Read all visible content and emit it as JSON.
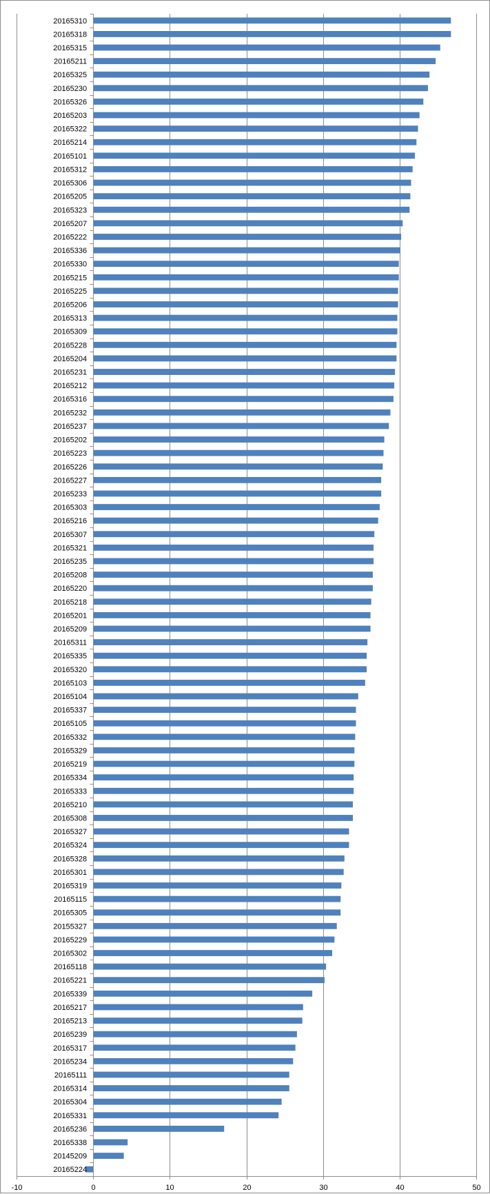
{
  "chart_data": {
    "type": "bar",
    "orientation": "horizontal",
    "title": "",
    "xlabel": "",
    "ylabel": "",
    "xlim": [
      -10,
      50
    ],
    "x_ticks": [
      -10,
      0,
      10,
      20,
      30,
      40,
      50
    ],
    "x_tick_labels": [
      "-10",
      "0",
      "10",
      "20",
      "30",
      "40",
      "50"
    ],
    "grid": "vertical major gridlines",
    "legend": "none",
    "bar_color": "#4F81BD",
    "categories": [
      "20165310",
      "20165318",
      "20165315",
      "20165211",
      "20165325",
      "20165230",
      "20165326",
      "20165203",
      "20165322",
      "20165214",
      "20165101",
      "20165312",
      "20165306",
      "20165205",
      "20165323",
      "20165207",
      "20165222",
      "20165336",
      "20165330",
      "20165215",
      "20165225",
      "20165206",
      "20165313",
      "20165309",
      "20165228",
      "20165204",
      "20165231",
      "20165212",
      "20165316",
      "20165232",
      "20165237",
      "20165202",
      "20165223",
      "20165226",
      "20165227",
      "20165233",
      "20165303",
      "20165216",
      "20165307",
      "20165321",
      "20165235",
      "20165208",
      "20165220",
      "20165218",
      "20165201",
      "20165209",
      "20165311",
      "20165335",
      "20165320",
      "20165103",
      "20165104",
      "20165337",
      "20165105",
      "20165332",
      "20165329",
      "20165219",
      "20165334",
      "20165333",
      "20165210",
      "20165308",
      "20165327",
      "20165324",
      "20165328",
      "20165301",
      "20165319",
      "20165115",
      "20165305",
      "20155327",
      "20165229",
      "20165302",
      "20165118",
      "20165221",
      "20165339",
      "20165217",
      "20165213",
      "20165239",
      "20165317",
      "20165234",
      "20165111",
      "20165314",
      "20165304",
      "20165331",
      "20165236",
      "20165338",
      "20145209",
      "20165224"
    ],
    "values": [
      46.7,
      46.7,
      45.3,
      44.7,
      43.9,
      43.7,
      43.1,
      42.6,
      42.4,
      42.2,
      42.0,
      41.7,
      41.5,
      41.4,
      41.3,
      40.4,
      40.2,
      40.1,
      39.9,
      39.9,
      39.8,
      39.8,
      39.7,
      39.7,
      39.6,
      39.6,
      39.4,
      39.3,
      39.2,
      38.8,
      38.6,
      38.0,
      37.9,
      37.8,
      37.6,
      37.6,
      37.4,
      37.2,
      36.7,
      36.6,
      36.6,
      36.5,
      36.5,
      36.3,
      36.2,
      36.2,
      35.8,
      35.7,
      35.7,
      35.5,
      34.6,
      34.3,
      34.3,
      34.2,
      34.1,
      34.1,
      34.0,
      34.0,
      33.9,
      33.9,
      33.4,
      33.4,
      32.8,
      32.7,
      32.4,
      32.3,
      32.3,
      31.8,
      31.5,
      31.2,
      30.4,
      30.2,
      28.6,
      27.4,
      27.3,
      26.6,
      26.4,
      26.1,
      25.6,
      25.6,
      24.6,
      24.2,
      17.1,
      4.5,
      4.0,
      -1.0
    ]
  }
}
